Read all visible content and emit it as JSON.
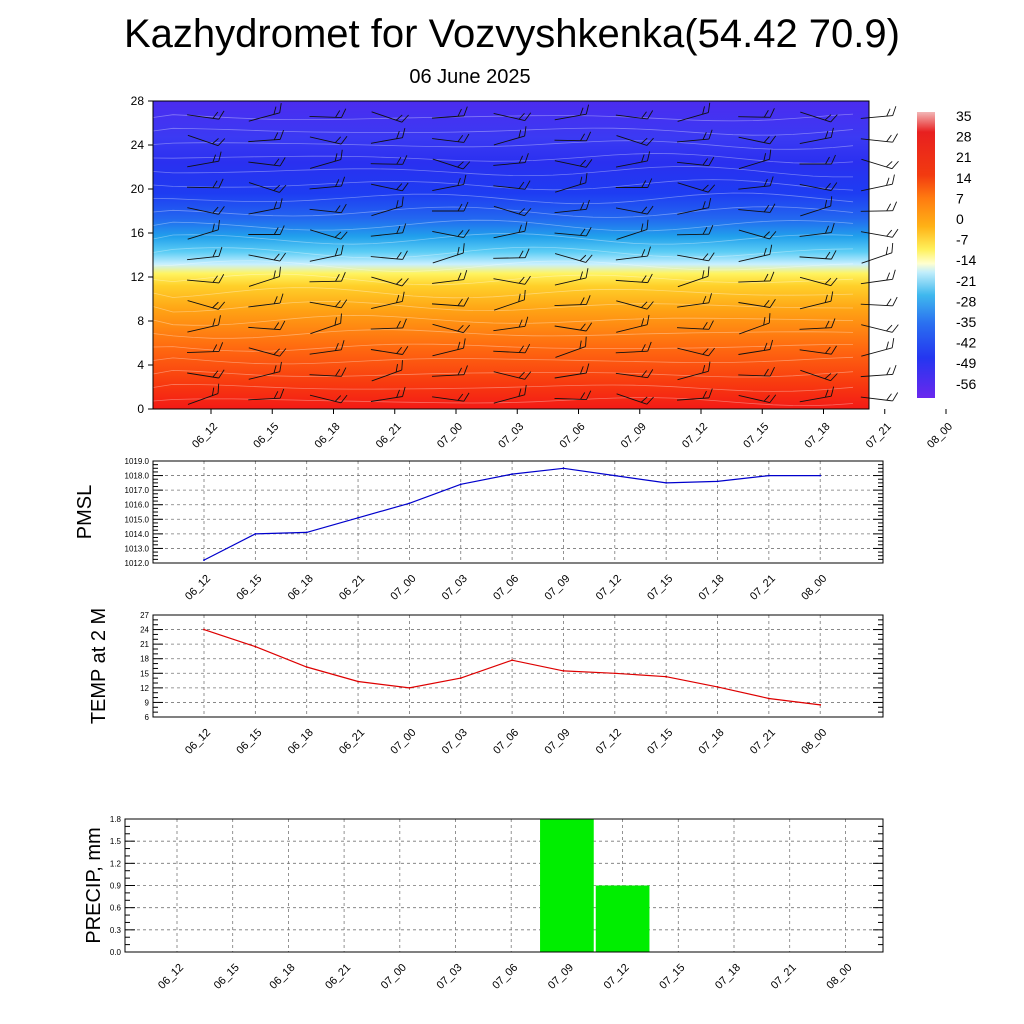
{
  "title": "Kazhydromet for Vozvyshkenka(54.42 70.9)",
  "subtitle": "06 June 2025",
  "chart_data": [
    {
      "type": "heatmap",
      "name": "upper-air-cross-section",
      "x_categories": [
        "06_12",
        "06_15",
        "06_18",
        "06_21",
        "07_00",
        "07_03",
        "07_06",
        "07_09",
        "07_12",
        "07_15",
        "07_18",
        "07_21",
        "08_00"
      ],
      "y_ticks": [
        0,
        4,
        8,
        12,
        16,
        20,
        24,
        28
      ],
      "ylim": [
        0,
        28
      ],
      "colorbar_labels": [
        "35",
        "28",
        "21",
        "14",
        "7",
        "0",
        "-7",
        "-14",
        "-21",
        "-28",
        "-35",
        "-42",
        "-49",
        "-56"
      ],
      "colorbar_range": [
        -63,
        38
      ],
      "colors": {
        "hot": "#e8141b",
        "warm": "#ff8a10",
        "yellow": "#fff460",
        "cyan": "#26b6ee",
        "blue": "#1e3cf2",
        "violet": "#5d1ff0"
      }
    },
    {
      "type": "line",
      "name": "pmsl",
      "ylabel": "PMSL",
      "x_categories": [
        "06_12",
        "06_15",
        "06_18",
        "06_21",
        "07_00",
        "07_03",
        "07_06",
        "07_09",
        "07_12",
        "07_15",
        "07_18",
        "07_21",
        "08_00"
      ],
      "values": [
        1012.2,
        1014.0,
        1014.1,
        1015.1,
        1016.1,
        1017.4,
        1018.1,
        1018.5,
        1018.0,
        1017.5,
        1017.6,
        1018.0,
        1018.0
      ],
      "y_ticks": [
        "1012.0",
        "1013.0",
        "1014.0",
        "1015.0",
        "1016.0",
        "1017.0",
        "1018.0",
        "1019.0"
      ],
      "ylim": [
        1012,
        1019
      ],
      "color": "#0000cc"
    },
    {
      "type": "line",
      "name": "temp2m",
      "ylabel": "TEMP at 2 M",
      "x_categories": [
        "06_12",
        "06_15",
        "06_18",
        "06_21",
        "07_00",
        "07_03",
        "07_06",
        "07_09",
        "07_12",
        "07_15",
        "07_18",
        "07_21",
        "08_00"
      ],
      "values": [
        24.0,
        20.5,
        16.3,
        13.3,
        12.0,
        14.0,
        17.7,
        15.5,
        15.0,
        14.3,
        12.2,
        9.8,
        8.5
      ],
      "y_ticks": [
        "6",
        "9",
        "12",
        "15",
        "18",
        "21",
        "24",
        "27"
      ],
      "ylim": [
        6,
        27
      ],
      "color": "#dd0000"
    },
    {
      "type": "bar",
      "name": "precip",
      "ylabel": "PRECIP, mm",
      "x_categories": [
        "06_12",
        "06_15",
        "06_18",
        "06_21",
        "07_00",
        "07_03",
        "07_06",
        "07_09",
        "07_12",
        "07_15",
        "07_18",
        "07_21",
        "08_00"
      ],
      "values": [
        0,
        0,
        0,
        0,
        0,
        0,
        0,
        1.8,
        0.9,
        0,
        0,
        0,
        0
      ],
      "y_ticks": [
        "0.0",
        "0.3",
        "0.6",
        "0.9",
        "1.2",
        "1.5",
        "1.8"
      ],
      "ylim": [
        0,
        1.8
      ],
      "color": "#00ee00"
    }
  ]
}
